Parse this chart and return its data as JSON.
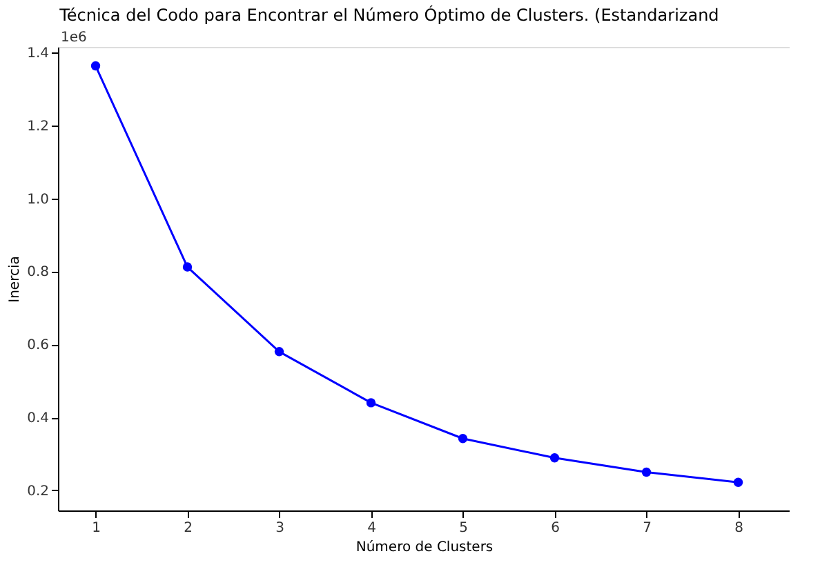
{
  "chart_data": {
    "type": "line",
    "title": "Técnica del Codo para Encontrar el Número Óptimo de Clusters. (Estandarizand",
    "xlabel": "Número de Clusters",
    "ylabel": "Inercia",
    "annotations": [
      "1e6"
    ],
    "x": [
      1,
      2,
      3,
      4,
      5,
      6,
      7,
      8
    ],
    "series": [
      {
        "color": "#0000ff",
        "values": [
          1.363,
          0.812,
          0.58,
          0.44,
          0.342,
          0.289,
          0.25,
          0.222
        ]
      }
    ],
    "xlim": [
      0.59,
      8.56
    ],
    "ylim": [
      0.145,
      1.415
    ],
    "xticks": [
      1,
      2,
      3,
      4,
      5,
      6,
      7,
      8
    ],
    "yticks": [
      {
        "value": 0.2,
        "label": "0.2"
      },
      {
        "value": 0.4,
        "label": "0.4"
      },
      {
        "value": 0.6,
        "label": "0.6"
      },
      {
        "value": 0.8,
        "label": "0.8"
      },
      {
        "value": 1.0,
        "label": "1.0"
      },
      {
        "value": 1.2,
        "label": "1.2"
      },
      {
        "value": 1.4,
        "label": "1.4"
      }
    ],
    "marker": "circle",
    "line_style": "solid",
    "grid": false
  }
}
